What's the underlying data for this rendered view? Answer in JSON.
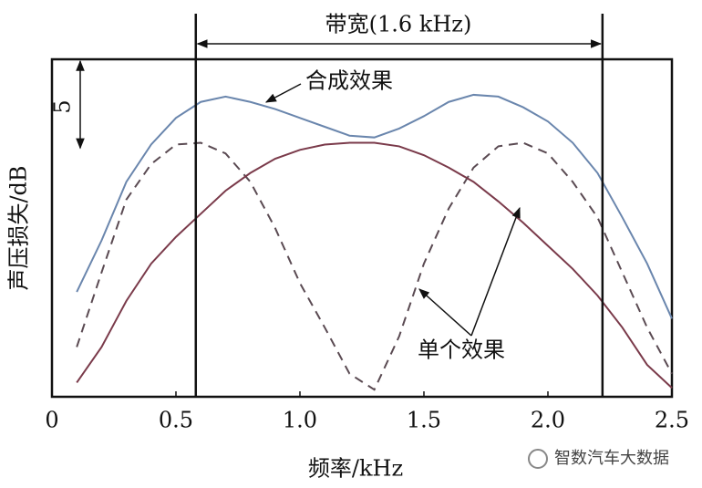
{
  "chart_data": {
    "type": "line",
    "x": [
      0.1,
      0.2,
      0.3,
      0.4,
      0.5,
      0.6,
      0.7,
      0.8,
      0.9,
      1.0,
      1.1,
      1.2,
      1.3,
      1.4,
      1.5,
      1.6,
      1.7,
      1.8,
      1.9,
      2.0,
      2.1,
      2.2,
      2.3,
      2.4,
      2.5
    ],
    "series": [
      {
        "color": "#6a86ad",
        "dash": false,
        "values": [
          5.9,
          8.8,
          12.1,
          14.2,
          15.7,
          16.6,
          16.9,
          16.6,
          16.2,
          15.7,
          15.2,
          14.7,
          14.6,
          15.1,
          15.8,
          16.6,
          17.0,
          16.9,
          16.3,
          15.5,
          14.3,
          12.6,
          10.1,
          7.5,
          4.4
        ]
      },
      {
        "color": "#5a4a52",
        "dash": true,
        "values": [
          2.8,
          7.0,
          11.1,
          13.1,
          14.2,
          14.3,
          13.7,
          12.1,
          9.5,
          6.4,
          3.9,
          1.3,
          0.4,
          3.4,
          7.5,
          10.6,
          12.9,
          14.1,
          14.3,
          13.7,
          12.1,
          10.1,
          7.0,
          3.9,
          1.3
        ]
      },
      {
        "color": "#7a3a4a",
        "dash": false,
        "values": [
          0.8,
          2.8,
          5.4,
          7.5,
          9.0,
          10.3,
          11.6,
          12.6,
          13.4,
          13.9,
          14.2,
          14.3,
          14.3,
          14.1,
          13.6,
          12.9,
          12.1,
          11.0,
          9.8,
          8.5,
          7.2,
          5.7,
          3.9,
          1.8,
          0.5
        ]
      }
    ],
    "xlim": [
      0,
      2.5
    ],
    "ylim": [
      0,
      19
    ],
    "xticks": [
      0,
      0.5,
      {
        "value": 1.0,
        "label": "1.0"
      },
      1.5,
      {
        "value": 2.0,
        "label": "2.0"
      },
      2.5
    ],
    "x_label": "频率/kHz",
    "y_label": "声压损失/dB",
    "bandwidth": {
      "label": "带宽(1.6 kHz)",
      "edges": [
        0.58,
        2.22
      ]
    },
    "scale_bar": 5,
    "annotations": [
      "合成效果",
      "单个效果"
    ],
    "watermark": "智数汽车大数据"
  }
}
